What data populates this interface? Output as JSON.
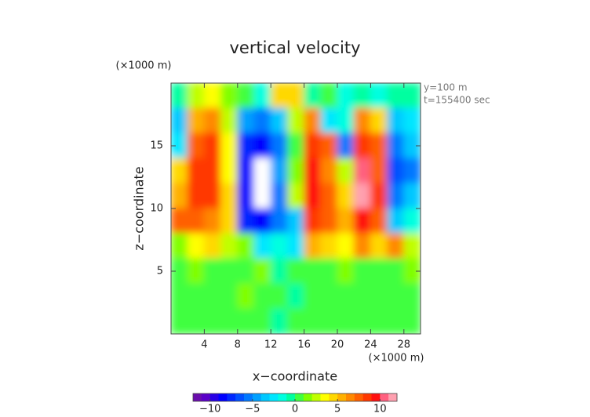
{
  "chart_data": {
    "type": "heatmap",
    "title": "vertical velocity",
    "annotations": [
      "y=100 m",
      "t=155400 sec"
    ],
    "x_label": "x−coordinate",
    "y_label": "z−coordinate",
    "x_unit_label": "(×1000 m)",
    "y_unit_label": "(×1000 m)",
    "xlim": [
      0,
      30
    ],
    "ylim": [
      0,
      20
    ],
    "xticks": [
      4,
      8,
      12,
      16,
      20,
      24,
      28
    ],
    "yticks": [
      5,
      10,
      15
    ],
    "x": [
      1,
      3,
      5,
      7,
      9,
      11,
      13,
      15,
      17,
      19,
      21,
      23,
      25,
      27,
      29
    ],
    "y": [
      19,
      17,
      15,
      13,
      11,
      9,
      7,
      5,
      3,
      1
    ],
    "values": [
      [
        -1,
        2,
        3,
        1,
        0,
        -2,
        4,
        4,
        -1,
        0,
        -2,
        -1,
        -2,
        -1,
        -1
      ],
      [
        -4,
        5,
        6,
        2,
        -5,
        -6,
        -4,
        2,
        6,
        -3,
        -2,
        6,
        4,
        -4,
        -3
      ],
      [
        -3,
        7,
        8,
        3,
        -8,
        -9,
        -6,
        0,
        8,
        7,
        -6,
        8,
        7,
        -6,
        -4
      ],
      [
        4,
        8,
        8,
        3,
        -9,
        -13,
        -5,
        1,
        9,
        6,
        2,
        10,
        7,
        -7,
        -6
      ],
      [
        5,
        8,
        8,
        4,
        -9,
        -13,
        -6,
        2,
        9,
        7,
        4,
        11,
        8,
        -6,
        -4
      ],
      [
        7,
        7,
        6,
        4,
        -8,
        -9,
        -6,
        -4,
        8,
        7,
        5,
        9,
        7,
        -4,
        -2
      ],
      [
        1,
        3,
        4,
        2,
        1,
        -3,
        -2,
        -3,
        5,
        4,
        3,
        6,
        4,
        6,
        2
      ],
      [
        0,
        1,
        0,
        0,
        0,
        1,
        -1,
        0,
        0,
        0,
        1,
        0,
        0,
        0,
        1
      ],
      [
        0,
        0,
        0,
        0,
        1,
        0,
        0,
        -1,
        0,
        0,
        0,
        0,
        0,
        0,
        0
      ],
      [
        0,
        0,
        0,
        0,
        0,
        0,
        -1,
        0,
        0,
        0,
        0,
        0,
        0,
        0,
        0
      ]
    ],
    "colorbar": {
      "lim": [
        -12,
        12
      ],
      "ticks": [
        {
          "value": -10,
          "label": "−10"
        },
        {
          "value": -5,
          "label": "−5"
        },
        0,
        5,
        10
      ],
      "colors": [
        "#6a0dad",
        "#5a00c8",
        "#2800e6",
        "#0000ff",
        "#0028ff",
        "#0050ff",
        "#0078ff",
        "#00a0ff",
        "#00c8ff",
        "#00e6ff",
        "#00ffe0",
        "#00ffa0",
        "#40ff40",
        "#80ff00",
        "#c0ff00",
        "#ffff00",
        "#ffd800",
        "#ffb000",
        "#ff8800",
        "#ff6000",
        "#ff3800",
        "#ff1010",
        "#ff6080",
        "#ffa0b0"
      ],
      "out_of_range_color": "#ffffff"
    }
  }
}
